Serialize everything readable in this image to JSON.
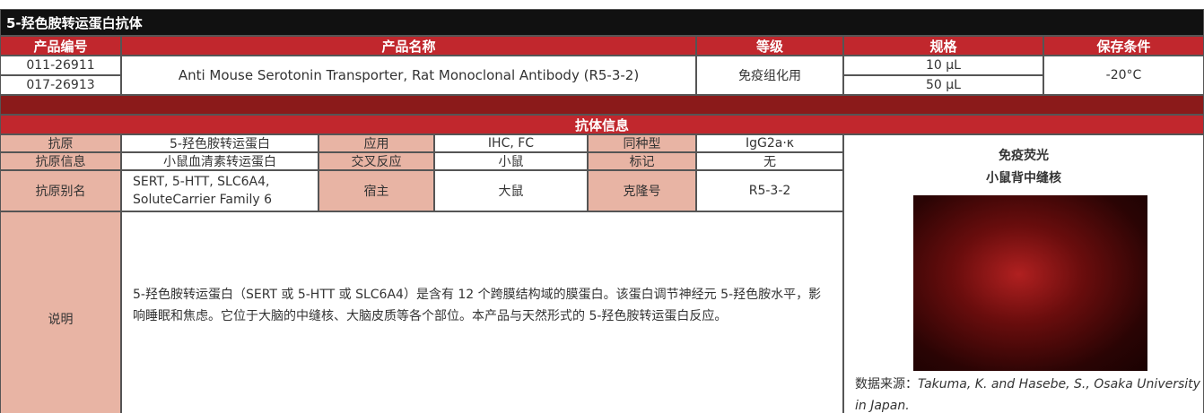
{
  "header": {
    "title": "5-羟色胺转运蛋白抗体"
  },
  "product_table": {
    "headers": [
      "产品编号",
      "产品名称",
      "等级",
      "规格",
      "保存条件"
    ],
    "codes": [
      "011-26911",
      "017-26913"
    ],
    "name": "Anti Mouse Serotonin Transporter, Rat Monoclonal Antibody (R5-3-2)",
    "grade": "免疫组化用",
    "sizes": [
      "10 µL",
      "50 µL"
    ],
    "storage": "-20°C"
  },
  "antibody_info": {
    "title": "抗体信息",
    "rows": [
      [
        "抗原",
        "5-羟色胺转运蛋白",
        "应用",
        "IHC, FC",
        "同种型",
        "IgG2a·κ"
      ],
      [
        "抗原信息",
        "小鼠血清素转运蛋白",
        "交叉反应",
        "小鼠",
        "标记",
        "无"
      ],
      [
        "抗原别名",
        "SERT, 5-HTT, SLC6A4, SoluteCarrier Family 6",
        "宿主",
        "大鼠",
        "克隆号",
        "R5-3-2"
      ]
    ],
    "description_label": "说明",
    "description": "5-羟色胺转运蛋白（SERT 或 5-HTT 或 SLC6A4）是含有 12 个跨膜结构域的膜蛋白。该蛋白调节神经元 5-羟色胺水平，影响睡眠和焦虑。它位于大脑的中缝核、大脑皮质等各个部位。本产品与天然形式的 5-羟色胺转运蛋白反应。"
  },
  "figure": {
    "title_lines": [
      "免疫荧光",
      "小鼠背中缝核"
    ],
    "source_label": "数据来源：",
    "source": "Takuma, K. and Hasebe, S., Osaka University in Japan."
  }
}
